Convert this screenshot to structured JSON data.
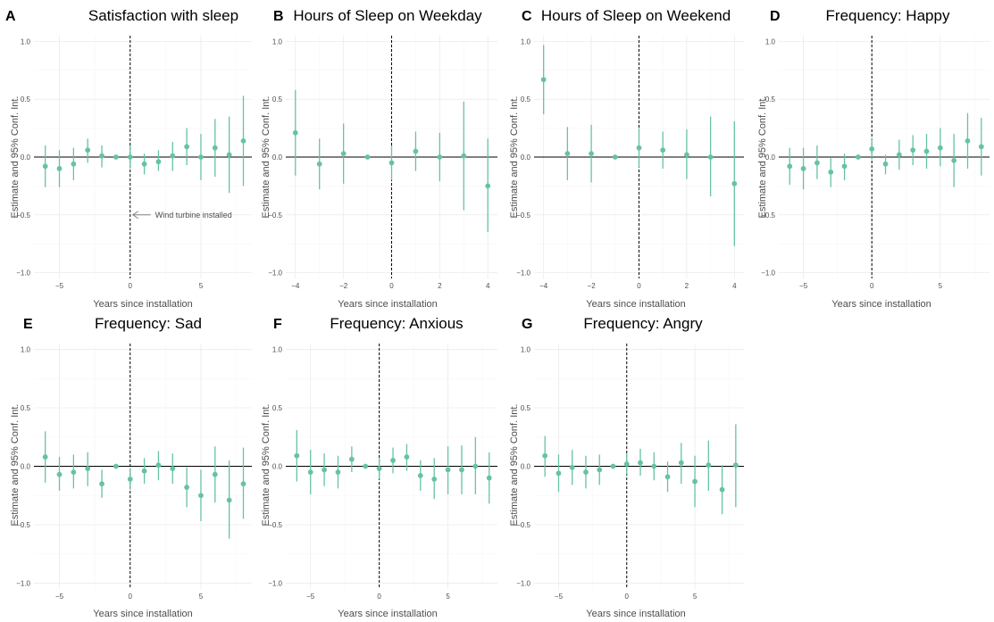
{
  "style": {
    "point_color": "#66c2a5",
    "zero_line_color": "#000000",
    "event_line_color": "#000000"
  },
  "chart_data": [
    {
      "id": "A",
      "letter": "A",
      "title": "Satisfaction with sleep",
      "type": "scatter",
      "xlabel": "Years since installation",
      "ylabel": "Estimate and 95% Conf. Int.",
      "xlim": [
        -6.8,
        8.6
      ],
      "ylim": [
        -1.05,
        1.05
      ],
      "xticks": [
        -5,
        0,
        5
      ],
      "xtick_labels": [
        "−5",
        "0",
        "5"
      ],
      "yticks": [
        -1,
        -0.5,
        0,
        0.5,
        1
      ],
      "ytick_labels": [
        "−1.0",
        "−0.5",
        "0.0",
        "0.5",
        "1.0"
      ],
      "hline": 0,
      "vline": 0,
      "annotation": {
        "text": "Wind turbine installed",
        "x": 0,
        "y": -0.5
      },
      "points": [
        {
          "x": -6,
          "y": -0.08,
          "lo": -0.26,
          "hi": 0.1
        },
        {
          "x": -5,
          "y": -0.1,
          "lo": -0.26,
          "hi": 0.06
        },
        {
          "x": -4,
          "y": -0.06,
          "lo": -0.2,
          "hi": 0.08
        },
        {
          "x": -3,
          "y": 0.06,
          "lo": -0.05,
          "hi": 0.16
        },
        {
          "x": -2,
          "y": 0.01,
          "lo": -0.09,
          "hi": 0.1
        },
        {
          "x": -1,
          "y": 0.0,
          "lo": 0.0,
          "hi": 0.0
        },
        {
          "x": 0,
          "y": 0.0,
          "lo": -0.1,
          "hi": 0.1
        },
        {
          "x": 1,
          "y": -0.06,
          "lo": -0.15,
          "hi": 0.03
        },
        {
          "x": 2,
          "y": -0.04,
          "lo": -0.12,
          "hi": 0.06
        },
        {
          "x": 3,
          "y": 0.01,
          "lo": -0.12,
          "hi": 0.13
        },
        {
          "x": 4,
          "y": 0.09,
          "lo": -0.07,
          "hi": 0.25
        },
        {
          "x": 5,
          "y": 0.0,
          "lo": -0.2,
          "hi": 0.2
        },
        {
          "x": 6,
          "y": 0.08,
          "lo": -0.17,
          "hi": 0.33
        },
        {
          "x": 7,
          "y": 0.02,
          "lo": -0.31,
          "hi": 0.35
        },
        {
          "x": 8,
          "y": 0.14,
          "lo": -0.25,
          "hi": 0.53
        }
      ]
    },
    {
      "id": "B",
      "letter": "B",
      "title": "Hours of Sleep on Weekday",
      "type": "scatter",
      "xlabel": "Years since installation",
      "ylabel": "Estimate and 95% Conf. Int.",
      "xlim": [
        -4.4,
        4.4
      ],
      "ylim": [
        -1.05,
        1.05
      ],
      "xticks": [
        -4,
        -2,
        0,
        2,
        4
      ],
      "xtick_labels": [
        "−4",
        "−2",
        "0",
        "2",
        "4"
      ],
      "yticks": [
        -1,
        -0.5,
        0,
        0.5,
        1
      ],
      "ytick_labels": [
        "−1.0",
        "−0.5",
        "0.0",
        "0.5",
        "1.0"
      ],
      "hline": 0,
      "vline": 0,
      "points": [
        {
          "x": -4,
          "y": 0.21,
          "lo": -0.16,
          "hi": 0.58
        },
        {
          "x": -3,
          "y": -0.06,
          "lo": -0.28,
          "hi": 0.16
        },
        {
          "x": -2,
          "y": 0.03,
          "lo": -0.23,
          "hi": 0.29
        },
        {
          "x": -1,
          "y": 0.0,
          "lo": 0.0,
          "hi": 0.0
        },
        {
          "x": 0,
          "y": -0.05,
          "lo": -0.2,
          "hi": 0.1
        },
        {
          "x": 1,
          "y": 0.05,
          "lo": -0.12,
          "hi": 0.22
        },
        {
          "x": 2,
          "y": 0.0,
          "lo": -0.21,
          "hi": 0.21
        },
        {
          "x": 3,
          "y": 0.01,
          "lo": -0.46,
          "hi": 0.48
        },
        {
          "x": 4,
          "y": -0.25,
          "lo": -0.65,
          "hi": 0.16
        }
      ]
    },
    {
      "id": "C",
      "letter": "C",
      "title": "Hours of Sleep on Weekend",
      "type": "scatter",
      "xlabel": "Years since installation",
      "ylabel": "Estimate and 95% Conf. Int.",
      "xlim": [
        -4.4,
        4.4
      ],
      "ylim": [
        -1.05,
        1.05
      ],
      "xticks": [
        -4,
        -2,
        0,
        2,
        4
      ],
      "xtick_labels": [
        "−4",
        "−2",
        "0",
        "2",
        "4"
      ],
      "yticks": [
        -1,
        -0.5,
        0,
        0.5,
        1
      ],
      "ytick_labels": [
        "−1.0",
        "−0.5",
        "0.0",
        "0.5",
        "1.0"
      ],
      "hline": 0,
      "vline": 0,
      "points": [
        {
          "x": -4,
          "y": 0.67,
          "lo": 0.37,
          "hi": 0.97
        },
        {
          "x": -3,
          "y": 0.03,
          "lo": -0.2,
          "hi": 0.26
        },
        {
          "x": -2,
          "y": 0.03,
          "lo": -0.22,
          "hi": 0.28
        },
        {
          "x": -1,
          "y": 0.0,
          "lo": 0.0,
          "hi": 0.0
        },
        {
          "x": 0,
          "y": 0.08,
          "lo": -0.09,
          "hi": 0.25
        },
        {
          "x": 1,
          "y": 0.06,
          "lo": -0.1,
          "hi": 0.22
        },
        {
          "x": 2,
          "y": 0.02,
          "lo": -0.19,
          "hi": 0.24
        },
        {
          "x": 3,
          "y": 0.0,
          "lo": -0.34,
          "hi": 0.35
        },
        {
          "x": 4,
          "y": -0.23,
          "lo": -0.77,
          "hi": 0.31
        }
      ]
    },
    {
      "id": "D",
      "letter": "D",
      "title": "Frequency: Happy",
      "type": "scatter",
      "xlabel": "Years since installation",
      "ylabel": "Estimate and 95% Conf. Int.",
      "xlim": [
        -6.8,
        8.6
      ],
      "ylim": [
        -1.05,
        1.05
      ],
      "xticks": [
        -5,
        0,
        5
      ],
      "xtick_labels": [
        "−5",
        "0",
        "5"
      ],
      "yticks": [
        -1,
        -0.5,
        0,
        0.5,
        1
      ],
      "ytick_labels": [
        "−1.0",
        "−0.5",
        "0.0",
        "0.5",
        "1.0"
      ],
      "hline": 0,
      "vline": 0,
      "points": [
        {
          "x": -6,
          "y": -0.08,
          "lo": -0.24,
          "hi": 0.08
        },
        {
          "x": -5,
          "y": -0.1,
          "lo": -0.28,
          "hi": 0.08
        },
        {
          "x": -4,
          "y": -0.05,
          "lo": -0.19,
          "hi": 0.1
        },
        {
          "x": -3,
          "y": -0.13,
          "lo": -0.26,
          "hi": -0.01
        },
        {
          "x": -2,
          "y": -0.08,
          "lo": -0.2,
          "hi": 0.03
        },
        {
          "x": -1,
          "y": 0.0,
          "lo": 0.0,
          "hi": 0.0
        },
        {
          "x": 0,
          "y": 0.07,
          "lo": -0.02,
          "hi": 0.16
        },
        {
          "x": 1,
          "y": -0.06,
          "lo": -0.15,
          "hi": 0.02
        },
        {
          "x": 2,
          "y": 0.02,
          "lo": -0.11,
          "hi": 0.15
        },
        {
          "x": 3,
          "y": 0.06,
          "lo": -0.07,
          "hi": 0.19
        },
        {
          "x": 4,
          "y": 0.05,
          "lo": -0.1,
          "hi": 0.2
        },
        {
          "x": 5,
          "y": 0.08,
          "lo": -0.08,
          "hi": 0.25
        },
        {
          "x": 6,
          "y": -0.03,
          "lo": -0.26,
          "hi": 0.2
        },
        {
          "x": 7,
          "y": 0.14,
          "lo": -0.1,
          "hi": 0.38
        },
        {
          "x": 8,
          "y": 0.09,
          "lo": -0.16,
          "hi": 0.34
        }
      ]
    },
    {
      "id": "E",
      "letter": "E",
      "title": "Frequency: Sad",
      "type": "scatter",
      "xlabel": "Years since installation",
      "ylabel": "Estimate and 95% Conf. Int.",
      "xlim": [
        -6.8,
        8.6
      ],
      "ylim": [
        -1.05,
        1.05
      ],
      "xticks": [
        -5,
        0,
        5
      ],
      "xtick_labels": [
        "−5",
        "0",
        "5"
      ],
      "yticks": [
        -1,
        -0.5,
        0,
        0.5,
        1
      ],
      "ytick_labels": [
        "−1.0",
        "−0.5",
        "0.0",
        "0.5",
        "1.0"
      ],
      "hline": 0,
      "vline": 0,
      "points": [
        {
          "x": -6,
          "y": 0.08,
          "lo": -0.14,
          "hi": 0.3
        },
        {
          "x": -5,
          "y": -0.07,
          "lo": -0.21,
          "hi": 0.08
        },
        {
          "x": -4,
          "y": -0.05,
          "lo": -0.19,
          "hi": 0.1
        },
        {
          "x": -3,
          "y": -0.02,
          "lo": -0.17,
          "hi": 0.12
        },
        {
          "x": -2,
          "y": -0.15,
          "lo": -0.27,
          "hi": -0.03
        },
        {
          "x": -1,
          "y": 0.0,
          "lo": 0.0,
          "hi": 0.0
        },
        {
          "x": 0,
          "y": -0.11,
          "lo": -0.2,
          "hi": -0.02
        },
        {
          "x": 1,
          "y": -0.04,
          "lo": -0.15,
          "hi": 0.07
        },
        {
          "x": 2,
          "y": 0.01,
          "lo": -0.12,
          "hi": 0.13
        },
        {
          "x": 3,
          "y": -0.02,
          "lo": -0.15,
          "hi": 0.11
        },
        {
          "x": 4,
          "y": -0.18,
          "lo": -0.35,
          "hi": -0.01
        },
        {
          "x": 5,
          "y": -0.25,
          "lo": -0.47,
          "hi": -0.03
        },
        {
          "x": 6,
          "y": -0.07,
          "lo": -0.31,
          "hi": 0.17
        },
        {
          "x": 7,
          "y": -0.29,
          "lo": -0.62,
          "hi": 0.05
        },
        {
          "x": 8,
          "y": -0.15,
          "lo": -0.45,
          "hi": 0.16
        }
      ]
    },
    {
      "id": "F",
      "letter": "F",
      "title": "Frequency: Anxious",
      "type": "scatter",
      "xlabel": "Years since installation",
      "ylabel": "Estimate and 95% Conf. Int.",
      "xlim": [
        -6.8,
        8.6
      ],
      "ylim": [
        -1.05,
        1.05
      ],
      "xticks": [
        -5,
        0,
        5
      ],
      "xtick_labels": [
        "−5",
        "0",
        "5"
      ],
      "yticks": [
        -1,
        -0.5,
        0,
        0.5,
        1
      ],
      "ytick_labels": [
        "−1.0",
        "−0.5",
        "0.0",
        "0.5",
        "1.0"
      ],
      "hline": 0,
      "vline": 0,
      "points": [
        {
          "x": -6,
          "y": 0.09,
          "lo": -0.13,
          "hi": 0.31
        },
        {
          "x": -5,
          "y": -0.05,
          "lo": -0.24,
          "hi": 0.14
        },
        {
          "x": -4,
          "y": -0.03,
          "lo": -0.17,
          "hi": 0.11
        },
        {
          "x": -3,
          "y": -0.05,
          "lo": -0.19,
          "hi": 0.09
        },
        {
          "x": -2,
          "y": 0.06,
          "lo": -0.05,
          "hi": 0.17
        },
        {
          "x": -1,
          "y": 0.0,
          "lo": 0.0,
          "hi": 0.0
        },
        {
          "x": 0,
          "y": -0.02,
          "lo": -0.11,
          "hi": 0.07
        },
        {
          "x": 1,
          "y": 0.05,
          "lo": -0.06,
          "hi": 0.16
        },
        {
          "x": 2,
          "y": 0.08,
          "lo": -0.04,
          "hi": 0.19
        },
        {
          "x": 3,
          "y": -0.08,
          "lo": -0.21,
          "hi": 0.05
        },
        {
          "x": 4,
          "y": -0.11,
          "lo": -0.28,
          "hi": 0.07
        },
        {
          "x": 5,
          "y": -0.03,
          "lo": -0.24,
          "hi": 0.17
        },
        {
          "x": 6,
          "y": -0.03,
          "lo": -0.24,
          "hi": 0.18
        },
        {
          "x": 7,
          "y": 0.0,
          "lo": -0.24,
          "hi": 0.25
        },
        {
          "x": 8,
          "y": -0.1,
          "lo": -0.32,
          "hi": 0.12
        }
      ]
    },
    {
      "id": "G",
      "letter": "G",
      "title": "Frequency: Angry",
      "type": "scatter",
      "xlabel": "Years since installation",
      "ylabel": "Estimate and 95% Conf. Int.",
      "xlim": [
        -6.8,
        8.6
      ],
      "ylim": [
        -1.05,
        1.05
      ],
      "xticks": [
        -5,
        0,
        5
      ],
      "xtick_labels": [
        "−5",
        "0",
        "5"
      ],
      "yticks": [
        -1,
        -0.5,
        0,
        0.5,
        1
      ],
      "ytick_labels": [
        "−1.0",
        "−0.5",
        "0.0",
        "0.5",
        "1.0"
      ],
      "hline": 0,
      "vline": 0,
      "points": [
        {
          "x": -6,
          "y": 0.09,
          "lo": -0.09,
          "hi": 0.26
        },
        {
          "x": -5,
          "y": -0.06,
          "lo": -0.22,
          "hi": 0.1
        },
        {
          "x": -4,
          "y": -0.01,
          "lo": -0.16,
          "hi": 0.14
        },
        {
          "x": -3,
          "y": -0.05,
          "lo": -0.19,
          "hi": 0.09
        },
        {
          "x": -2,
          "y": -0.03,
          "lo": -0.16,
          "hi": 0.1
        },
        {
          "x": -1,
          "y": 0.0,
          "lo": 0.0,
          "hi": 0.0
        },
        {
          "x": 0,
          "y": 0.02,
          "lo": -0.07,
          "hi": 0.11
        },
        {
          "x": 1,
          "y": 0.03,
          "lo": -0.08,
          "hi": 0.15
        },
        {
          "x": 2,
          "y": 0.0,
          "lo": -0.12,
          "hi": 0.12
        },
        {
          "x": 3,
          "y": -0.09,
          "lo": -0.22,
          "hi": 0.04
        },
        {
          "x": 4,
          "y": 0.03,
          "lo": -0.15,
          "hi": 0.2
        },
        {
          "x": 5,
          "y": -0.13,
          "lo": -0.35,
          "hi": 0.09
        },
        {
          "x": 6,
          "y": 0.01,
          "lo": -0.21,
          "hi": 0.22
        },
        {
          "x": 7,
          "y": -0.2,
          "lo": -0.41,
          "hi": 0.01
        },
        {
          "x": 8,
          "y": 0.01,
          "lo": -0.35,
          "hi": 0.36
        }
      ]
    }
  ]
}
